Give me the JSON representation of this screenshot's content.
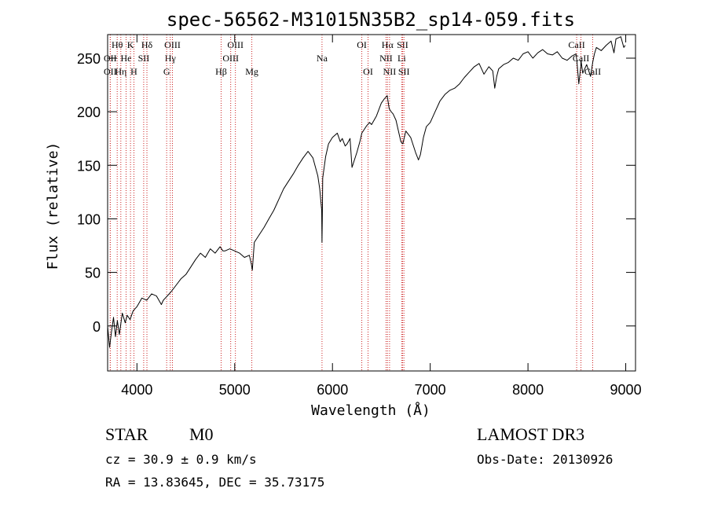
{
  "chart_data": {
    "type": "line",
    "title": "spec-56562-M31015N35B2_sp14-059.fits",
    "xlabel": "Wavelength (Å)",
    "ylabel": "Flux (relative)",
    "xlim": [
      3700,
      9100
    ],
    "ylim": [
      -42,
      272
    ],
    "xticks": [
      4000,
      5000,
      6000,
      7000,
      8000,
      9000
    ],
    "yticks": [
      0,
      50,
      100,
      150,
      200,
      250
    ],
    "series": [
      {
        "name": "flux",
        "x": [
          3700,
          3720,
          3740,
          3760,
          3780,
          3800,
          3820,
          3850,
          3880,
          3900,
          3930,
          3960,
          4000,
          4050,
          4100,
          4150,
          4200,
          4250,
          4270,
          4290,
          4310,
          4350,
          4400,
          4450,
          4500,
          4550,
          4600,
          4650,
          4700,
          4750,
          4800,
          4850,
          4880,
          4900,
          4950,
          5000,
          5050,
          5100,
          5150,
          5170,
          5180,
          5200,
          5250,
          5300,
          5350,
          5400,
          5450,
          5500,
          5550,
          5600,
          5650,
          5700,
          5750,
          5800,
          5850,
          5870,
          5890,
          5893,
          5896,
          5900,
          5930,
          5960,
          6000,
          6050,
          6080,
          6100,
          6130,
          6150,
          6180,
          6200,
          6250,
          6280,
          6300,
          6350,
          6380,
          6400,
          6450,
          6500,
          6530,
          6560,
          6580,
          6600,
          6620,
          6650,
          6700,
          6720,
          6750,
          6800,
          6850,
          6880,
          6900,
          6930,
          6960,
          7000,
          7050,
          7100,
          7150,
          7200,
          7250,
          7300,
          7350,
          7400,
          7450,
          7500,
          7550,
          7600,
          7640,
          7660,
          7680,
          7700,
          7750,
          7800,
          7850,
          7900,
          7950,
          8000,
          8050,
          8100,
          8150,
          8200,
          8250,
          8300,
          8350,
          8400,
          8450,
          8490,
          8500,
          8520,
          8540,
          8542,
          8560,
          8600,
          8640,
          8662,
          8680,
          8700,
          8750,
          8800,
          8850,
          8880,
          8900,
          8950,
          8980,
          8995
        ],
        "y": [
          0,
          -20,
          -5,
          8,
          -10,
          5,
          -8,
          12,
          3,
          10,
          6,
          14,
          18,
          26,
          24,
          30,
          28,
          20,
          24,
          26,
          28,
          32,
          38,
          44,
          48,
          55,
          62,
          68,
          64,
          72,
          68,
          74,
          70,
          70,
          72,
          70,
          68,
          64,
          66,
          58,
          52,
          78,
          85,
          92,
          100,
          108,
          118,
          128,
          135,
          142,
          150,
          157,
          163,
          157,
          140,
          128,
          108,
          78,
          100,
          138,
          158,
          170,
          176,
          180,
          172,
          175,
          168,
          170,
          175,
          148,
          162,
          172,
          180,
          187,
          190,
          188,
          196,
          208,
          212,
          215,
          203,
          200,
          198,
          192,
          172,
          170,
          182,
          176,
          162,
          155,
          160,
          176,
          186,
          190,
          200,
          210,
          216,
          220,
          222,
          226,
          232,
          237,
          242,
          245,
          235,
          242,
          238,
          222,
          233,
          240,
          244,
          246,
          250,
          248,
          254,
          256,
          250,
          255,
          258,
          254,
          253,
          256,
          250,
          248,
          252,
          254,
          248,
          226,
          242,
          248,
          236,
          244,
          233,
          246,
          254,
          260,
          257,
          262,
          266,
          255,
          268,
          270,
          260,
          262
        ]
      }
    ],
    "spectral_lines": [
      {
        "label": "Hθ",
        "wavelength": 3798,
        "row": 0
      },
      {
        "label": "OII",
        "wavelength": 3727,
        "row": 1
      },
      {
        "label": "OII",
        "wavelength": 3727,
        "row": 2
      },
      {
        "label": "Hη",
        "wavelength": 3835,
        "row": 2
      },
      {
        "label": "He",
        "wavelength": 3889,
        "row": 1
      },
      {
        "label": "K",
        "wavelength": 3934,
        "row": 0
      },
      {
        "label": "H",
        "wavelength": 3969,
        "row": 2
      },
      {
        "label": "SII",
        "wavelength": 4069,
        "row": 1
      },
      {
        "label": "Hδ",
        "wavelength": 4102,
        "row": 0
      },
      {
        "label": "OIII",
        "wavelength": 4363,
        "row": 0
      },
      {
        "label": "Hγ",
        "wavelength": 4341,
        "row": 1
      },
      {
        "label": "G",
        "wavelength": 4304,
        "row": 2
      },
      {
        "label": "Hβ",
        "wavelength": 4861,
        "row": 2
      },
      {
        "label": "OIII",
        "wavelength": 5007,
        "row": 0
      },
      {
        "label": "OIII",
        "wavelength": 4959,
        "row": 1
      },
      {
        "label": "Mg",
        "wavelength": 5175,
        "row": 2
      },
      {
        "label": "Na",
        "wavelength": 5893,
        "row": 1
      },
      {
        "label": "OI",
        "wavelength": 6300,
        "row": 0
      },
      {
        "label": "OI",
        "wavelength": 6364,
        "row": 2
      },
      {
        "label": "Hα",
        "wavelength": 6563,
        "row": 0
      },
      {
        "label": "NII",
        "wavelength": 6548,
        "row": 1
      },
      {
        "label": "NII",
        "wavelength": 6584,
        "row": 2
      },
      {
        "label": "SII",
        "wavelength": 6717,
        "row": 0
      },
      {
        "label": "Li",
        "wavelength": 6708,
        "row": 1
      },
      {
        "label": "SII",
        "wavelength": 6731,
        "row": 2
      },
      {
        "label": "CaII",
        "wavelength": 8498,
        "row": 0
      },
      {
        "label": "CaII",
        "wavelength": 8542,
        "row": 1
      },
      {
        "label": "CaII",
        "wavelength": 8662,
        "row": 2
      }
    ]
  },
  "info": {
    "class_label": "STAR",
    "subclass": "M0",
    "survey": "LAMOST DR3",
    "cz": "cz = 30.9 ± 0.9 km/s",
    "obs_date": "Obs-Date: 20130926",
    "coords": "RA =  13.83645, DEC =  35.73175"
  }
}
